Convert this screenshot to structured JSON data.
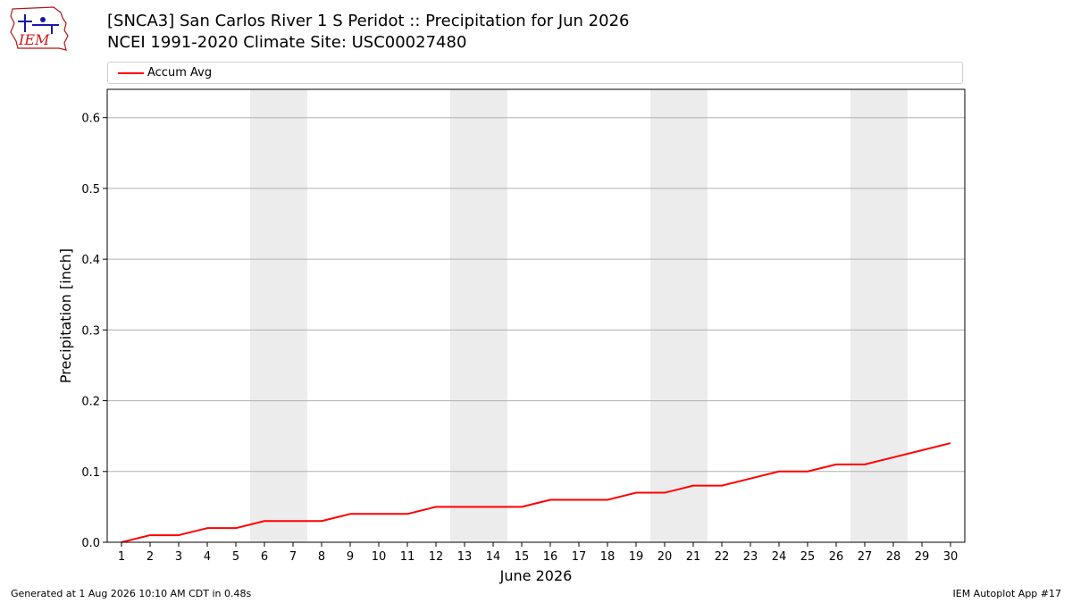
{
  "chart_data": {
    "type": "line",
    "title": "[SNCA3] San Carlos River 1 S Peridot :: Precipitation for Jun 2026",
    "subtitle": "NCEI 1991-2020 Climate Site: USC00027480",
    "xlabel": "June 2026",
    "ylabel": "Precipitation [inch]",
    "x": [
      1,
      2,
      3,
      4,
      5,
      6,
      7,
      8,
      9,
      10,
      11,
      12,
      13,
      14,
      15,
      16,
      17,
      18,
      19,
      20,
      21,
      22,
      23,
      24,
      25,
      26,
      27,
      28,
      29,
      30
    ],
    "xtick_labels": [
      "1",
      "2",
      "3",
      "4",
      "5",
      "6",
      "7",
      "8",
      "9",
      "10",
      "11",
      "12",
      "13",
      "14",
      "15",
      "16",
      "17",
      "18",
      "19",
      "20",
      "21",
      "22",
      "23",
      "24",
      "25",
      "26",
      "27",
      "28",
      "29",
      "30"
    ],
    "ylim": [
      0,
      0.64
    ],
    "ytick_labels": [
      "0.0",
      "0.1",
      "0.2",
      "0.3",
      "0.4",
      "0.5",
      "0.6"
    ],
    "weekend_shading": [
      [
        6,
        7
      ],
      [
        13,
        14
      ],
      [
        20,
        21
      ],
      [
        27,
        28
      ]
    ],
    "grid": "horizontal",
    "legend_position": "top",
    "series": [
      {
        "name": "Accum Avg",
        "color": "#ff0000",
        "values": [
          0.0,
          0.01,
          0.01,
          0.02,
          0.02,
          0.03,
          0.03,
          0.03,
          0.04,
          0.04,
          0.04,
          0.05,
          0.05,
          0.05,
          0.05,
          0.06,
          0.06,
          0.06,
          0.07,
          0.07,
          0.08,
          0.08,
          0.09,
          0.1,
          0.1,
          0.11,
          0.11,
          0.12,
          0.13,
          0.14
        ]
      }
    ]
  },
  "logo": {
    "text": "IEM"
  },
  "footer": {
    "left": "Generated at 1 Aug 2026 10:10 AM CDT in 0.48s",
    "right": "IEM Autoplot App #17"
  }
}
